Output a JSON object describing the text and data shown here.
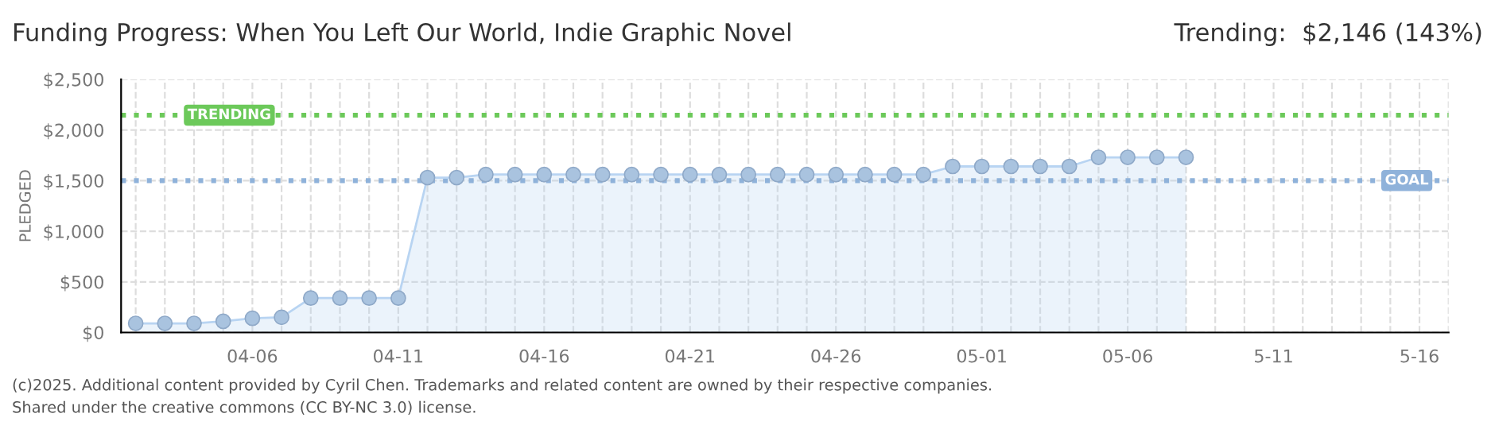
{
  "chart_data": {
    "type": "area",
    "title": "Funding Progress: When You Left Our World, Indie Graphic Novel",
    "subtitle": "Trending:  $2,146 (143%)",
    "ylabel": "PLEDGED",
    "x": [
      "2025-04-02",
      "2025-04-03",
      "2025-04-04",
      "2025-04-05",
      "2025-04-06",
      "2025-04-07",
      "2025-04-08",
      "2025-04-09",
      "2025-04-10",
      "2025-04-11",
      "2025-04-12",
      "2025-04-13",
      "2025-04-14",
      "2025-04-15",
      "2025-04-16",
      "2025-04-17",
      "2025-04-18",
      "2025-04-19",
      "2025-04-20",
      "2025-04-21",
      "2025-04-22",
      "2025-04-23",
      "2025-04-24",
      "2025-04-25",
      "2025-04-26",
      "2025-04-27",
      "2025-04-28",
      "2025-04-29",
      "2025-04-30",
      "2025-05-01",
      "2025-05-02",
      "2025-05-03",
      "2025-05-04",
      "2025-05-05",
      "2025-05-06",
      "2025-05-07",
      "2025-05-08"
    ],
    "series": [
      {
        "color": "#b8d4f2",
        "values": [
          90,
          90,
          90,
          110,
          140,
          150,
          340,
          340,
          340,
          340,
          1530,
          1530,
          1560,
          1560,
          1560,
          1560,
          1560,
          1560,
          1560,
          1560,
          1560,
          1560,
          1560,
          1560,
          1560,
          1560,
          1560,
          1560,
          1640,
          1640,
          1640,
          1640,
          1640,
          1730,
          1730,
          1730,
          1730
        ]
      }
    ],
    "xlim": [
      "2025-04-01T12:00",
      "2025-05-17"
    ],
    "xticks": [
      {
        "value": "2025-04-02",
        "label": null
      },
      {
        "value": "2025-04-03",
        "label": null
      },
      {
        "value": "2025-04-04",
        "label": null
      },
      {
        "value": "2025-04-05",
        "label": null
      },
      {
        "value": "2025-04-06",
        "label": "04-06"
      },
      {
        "value": "2025-04-07",
        "label": null
      },
      {
        "value": "2025-04-08",
        "label": null
      },
      {
        "value": "2025-04-09",
        "label": null
      },
      {
        "value": "2025-04-10",
        "label": null
      },
      {
        "value": "2025-04-11",
        "label": "04-11"
      },
      {
        "value": "2025-04-12",
        "label": null
      },
      {
        "value": "2025-04-13",
        "label": null
      },
      {
        "value": "2025-04-14",
        "label": null
      },
      {
        "value": "2025-04-15",
        "label": null
      },
      {
        "value": "2025-04-16",
        "label": "04-16"
      },
      {
        "value": "2025-04-17",
        "label": null
      },
      {
        "value": "2025-04-18",
        "label": null
      },
      {
        "value": "2025-04-19",
        "label": null
      },
      {
        "value": "2025-04-20",
        "label": null
      },
      {
        "value": "2025-04-21",
        "label": "04-21"
      },
      {
        "value": "2025-04-22",
        "label": null
      },
      {
        "value": "2025-04-23",
        "label": null
      },
      {
        "value": "2025-04-24",
        "label": null
      },
      {
        "value": "2025-04-25",
        "label": null
      },
      {
        "value": "2025-04-26",
        "label": "04-26"
      },
      {
        "value": "2025-04-27",
        "label": null
      },
      {
        "value": "2025-04-28",
        "label": null
      },
      {
        "value": "2025-04-29",
        "label": null
      },
      {
        "value": "2025-04-30",
        "label": null
      },
      {
        "value": "2025-05-01",
        "label": "05-01"
      },
      {
        "value": "2025-05-02",
        "label": null
      },
      {
        "value": "2025-05-03",
        "label": null
      },
      {
        "value": "2025-05-04",
        "label": null
      },
      {
        "value": "2025-05-05",
        "label": null
      },
      {
        "value": "2025-05-06",
        "label": "05-06"
      },
      {
        "value": "2025-05-07",
        "label": null
      },
      {
        "value": "2025-05-08",
        "label": null
      },
      {
        "value": "2025-05-09",
        "label": null
      },
      {
        "value": "2025-05-10",
        "label": null
      },
      {
        "value": "2025-05-11",
        "label": "5-11"
      },
      {
        "value": "2025-05-12",
        "label": null
      },
      {
        "value": "2025-05-13",
        "label": null
      },
      {
        "value": "2025-05-14",
        "label": null
      },
      {
        "value": "2025-05-15",
        "label": null
      },
      {
        "value": "2025-05-16",
        "label": "5-16"
      },
      {
        "value": "2025-05-17",
        "label": null
      }
    ],
    "ylim": [
      0,
      2500
    ],
    "yticks": [
      {
        "value": 0,
        "label": "$0"
      },
      {
        "value": 500,
        "label": "$500"
      },
      {
        "value": 1000,
        "label": "$1,000"
      },
      {
        "value": 1500,
        "label": "$1,500"
      },
      {
        "value": 2000,
        "label": "$2,000"
      },
      {
        "value": 2500,
        "label": "$2,500"
      }
    ],
    "ref_lines": [
      {
        "axis": "y",
        "value": 2146,
        "label": "TRENDING",
        "color": "#6cc95a",
        "line_style": "dotted"
      },
      {
        "axis": "y",
        "value": 1500,
        "label": "GOAL",
        "color": "#8fb2da",
        "line_style": "dotted"
      }
    ],
    "grid": true,
    "marker": "circle",
    "annotations": [
      "(c)2025. Additional content provided by Cyril Chen. Trademarks and related content are owned by their respective companies.",
      "Shared under the creative commons (CC BY-NC 3.0) license."
    ]
  }
}
